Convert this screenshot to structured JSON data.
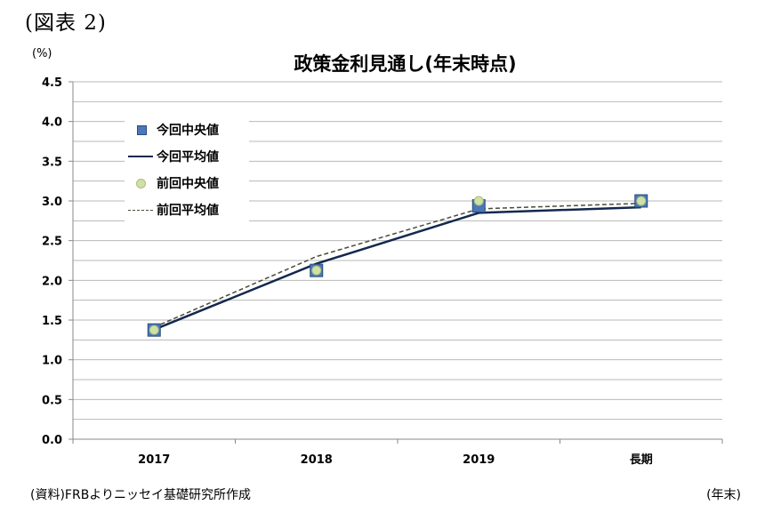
{
  "figure_label": "(図表 2)",
  "unit_left": "(%)",
  "unit_right": "(年末)",
  "source": "(資料)FRBよりニッセイ基礎研究所作成",
  "chart_data": {
    "type": "line",
    "title": "政策金利見通し(年末時点)",
    "categories": [
      "2017",
      "2018",
      "2019",
      "長期"
    ],
    "ylim": [
      0,
      4.5
    ],
    "yticks": [
      "0.0",
      "0.5",
      "1.0",
      "1.5",
      "2.0",
      "2.5",
      "3.0",
      "3.5",
      "4.0",
      "4.5"
    ],
    "grid": true,
    "legend_position": "top-left",
    "series": [
      {
        "name": "今回中央値",
        "style": "marker-square",
        "color": "#4a78b8",
        "values": [
          1.375,
          2.125,
          2.9375,
          3.0
        ]
      },
      {
        "name": "今回平均値",
        "style": "solid-line",
        "color": "#13284f",
        "values": [
          1.38,
          2.21,
          2.85,
          2.92
        ]
      },
      {
        "name": "前回中央値",
        "style": "marker-dot",
        "color": "#cfe0a8",
        "values": [
          1.375,
          2.125,
          3.0,
          3.0
        ]
      },
      {
        "name": "前回平均値",
        "style": "dashed-line",
        "color": "#4a4a3a",
        "values": [
          1.41,
          2.3,
          2.9,
          2.97
        ]
      }
    ]
  }
}
